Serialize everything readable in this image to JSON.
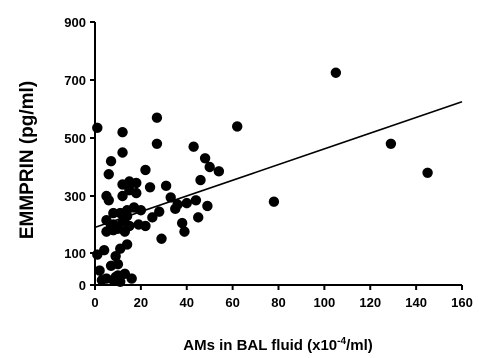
{
  "chart_data": {
    "type": "scatter",
    "xlabel": "AMs in BAL fluid (x10",
    "xlabel_sup": "-4",
    "xlabel_suffix": "/ml)",
    "ylabel": "EMMPRIN (pg/ml)",
    "xlim": [
      0,
      160
    ],
    "ylim": [
      0,
      900
    ],
    "y_scale": "piecewise",
    "y_ticks": [
      0,
      100,
      300,
      500,
      700,
      900
    ],
    "x_ticks": [
      0,
      20,
      40,
      60,
      80,
      100,
      120,
      140,
      160
    ],
    "y_tick_labels": [
      "0",
      "100",
      "300",
      "500",
      "700",
      "900"
    ],
    "x_tick_labels": [
      "0",
      "20",
      "40",
      "60",
      "80",
      "100",
      "120",
      "140",
      "160"
    ],
    "grid": false,
    "marker_color": "#000000",
    "trendline": {
      "x": [
        0,
        160
      ],
      "y": [
        190,
        625
      ]
    },
    "points": [
      {
        "x": 1,
        "y": 535
      },
      {
        "x": 1,
        "y": 95
      },
      {
        "x": 2,
        "y": 45
      },
      {
        "x": 3,
        "y": 15
      },
      {
        "x": 4,
        "y": 110
      },
      {
        "x": 5,
        "y": 300
      },
      {
        "x": 5,
        "y": 215
      },
      {
        "x": 5,
        "y": 175
      },
      {
        "x": 5,
        "y": 20
      },
      {
        "x": 6,
        "y": 375
      },
      {
        "x": 6,
        "y": 285
      },
      {
        "x": 7,
        "y": 420
      },
      {
        "x": 7,
        "y": 195
      },
      {
        "x": 7,
        "y": 60
      },
      {
        "x": 8,
        "y": 240
      },
      {
        "x": 8,
        "y": 200
      },
      {
        "x": 8,
        "y": 180
      },
      {
        "x": 8,
        "y": 15
      },
      {
        "x": 9,
        "y": 90
      },
      {
        "x": 9,
        "y": 25
      },
      {
        "x": 10,
        "y": 185
      },
      {
        "x": 10,
        "y": 65
      },
      {
        "x": 10,
        "y": 30
      },
      {
        "x": 11,
        "y": 240
      },
      {
        "x": 11,
        "y": 115
      },
      {
        "x": 11,
        "y": 10
      },
      {
        "x": 12,
        "y": 520
      },
      {
        "x": 12,
        "y": 450
      },
      {
        "x": 12,
        "y": 340
      },
      {
        "x": 12,
        "y": 300
      },
      {
        "x": 12,
        "y": 210
      },
      {
        "x": 13,
        "y": 175
      },
      {
        "x": 13,
        "y": 35
      },
      {
        "x": 14,
        "y": 250
      },
      {
        "x": 14,
        "y": 230
      },
      {
        "x": 14,
        "y": 130
      },
      {
        "x": 15,
        "y": 350
      },
      {
        "x": 15,
        "y": 320
      },
      {
        "x": 15,
        "y": 195
      },
      {
        "x": 16,
        "y": 20
      },
      {
        "x": 17,
        "y": 260
      },
      {
        "x": 18,
        "y": 345
      },
      {
        "x": 18,
        "y": 310
      },
      {
        "x": 19,
        "y": 200
      },
      {
        "x": 20,
        "y": 250
      },
      {
        "x": 22,
        "y": 390
      },
      {
        "x": 22,
        "y": 195
      },
      {
        "x": 24,
        "y": 330
      },
      {
        "x": 25,
        "y": 225
      },
      {
        "x": 27,
        "y": 570
      },
      {
        "x": 27,
        "y": 480
      },
      {
        "x": 28,
        "y": 245
      },
      {
        "x": 29,
        "y": 150
      },
      {
        "x": 31,
        "y": 335
      },
      {
        "x": 33,
        "y": 295
      },
      {
        "x": 35,
        "y": 255
      },
      {
        "x": 36,
        "y": 270
      },
      {
        "x": 38,
        "y": 205
      },
      {
        "x": 39,
        "y": 175
      },
      {
        "x": 40,
        "y": 275
      },
      {
        "x": 43,
        "y": 470
      },
      {
        "x": 44,
        "y": 285
      },
      {
        "x": 45,
        "y": 225
      },
      {
        "x": 46,
        "y": 355
      },
      {
        "x": 48,
        "y": 430
      },
      {
        "x": 49,
        "y": 265
      },
      {
        "x": 50,
        "y": 400
      },
      {
        "x": 54,
        "y": 385
      },
      {
        "x": 62,
        "y": 540
      },
      {
        "x": 78,
        "y": 280
      },
      {
        "x": 105,
        "y": 725
      },
      {
        "x": 129,
        "y": 480
      },
      {
        "x": 145,
        "y": 380
      }
    ]
  }
}
